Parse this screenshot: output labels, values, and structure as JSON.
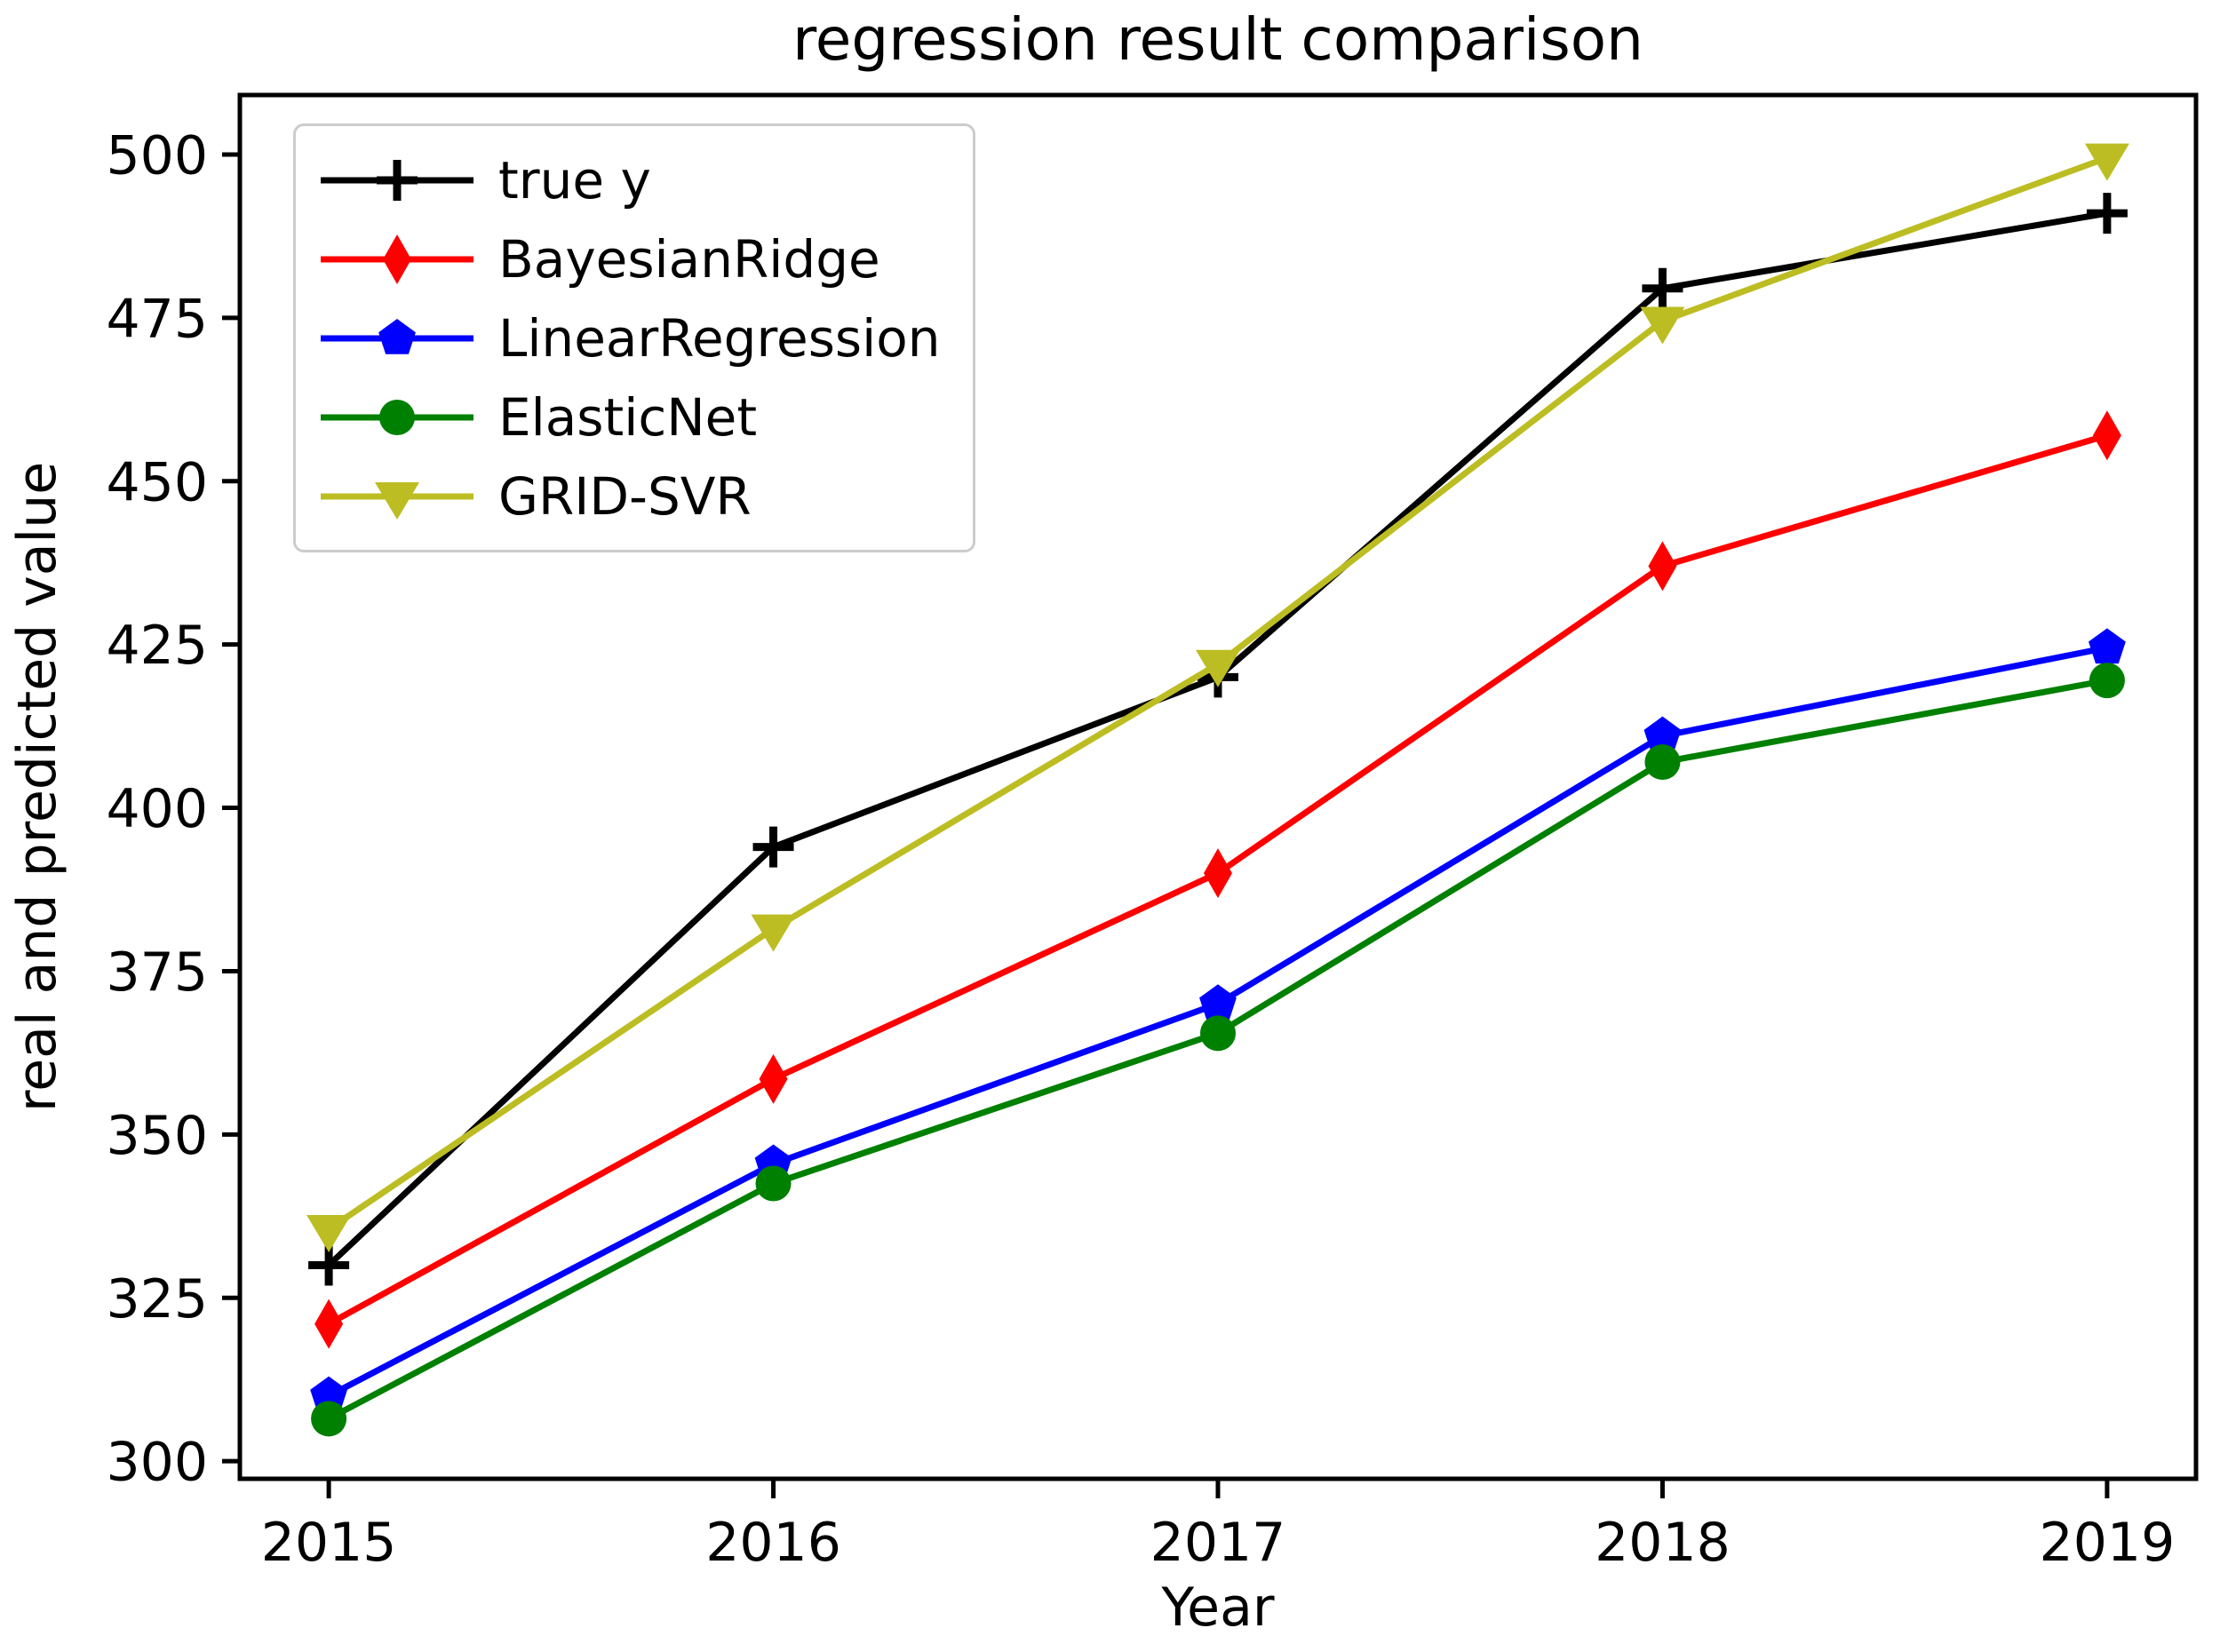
{
  "figure": {
    "title": "regression result comparison",
    "xlabel": "Year",
    "ylabel": "real and predicted value"
  },
  "chart_data": {
    "type": "line",
    "title": "regression result comparison",
    "xlabel": "Year",
    "ylabel": "real and predicted value",
    "categories": [
      2015,
      2016,
      2017,
      2018,
      2019
    ],
    "x_tick_labels": [
      "2015",
      "2016",
      "2017",
      "2018",
      "2019"
    ],
    "y_ticks": [
      300,
      325,
      350,
      375,
      400,
      425,
      450,
      475,
      500
    ],
    "xlim": [
      2014.8,
      2019.2
    ],
    "ylim": [
      297.3,
      509.1
    ],
    "grid": false,
    "legend_position": "upper left",
    "frame_color": "#000000",
    "background_color": "#ffffff",
    "series": [
      {
        "name": "true y",
        "color": "#000000",
        "marker": "plus",
        "values": [
          330,
          394,
          420,
          479.5,
          491
        ]
      },
      {
        "name": "BayesianRidge",
        "color": "#ff0000",
        "marker": "thin-diamond",
        "values": [
          321,
          358.5,
          390,
          437,
          457
        ]
      },
      {
        "name": "LinearRegression",
        "color": "#0000ff",
        "marker": "pentagon",
        "values": [
          310,
          345.5,
          370,
          411,
          424.5
        ]
      },
      {
        "name": "ElasticNet",
        "color": "#008000",
        "marker": "circle",
        "values": [
          306.5,
          342.5,
          365.5,
          407,
          419.5
        ]
      },
      {
        "name": "GRID-SVR",
        "color": "#bcbd22",
        "marker": "triangle-down",
        "values": [
          335.5,
          381.5,
          422,
          474.5,
          499.5
        ]
      }
    ]
  }
}
